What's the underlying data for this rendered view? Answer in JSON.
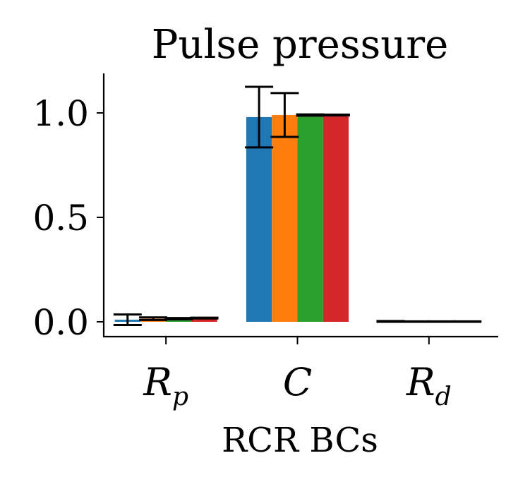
{
  "chart_data": {
    "type": "bar",
    "title": "Pulse pressure",
    "xlabel": "RCR BCs",
    "ylabel": "",
    "categories": [
      {
        "main": "R",
        "sub": "p"
      },
      {
        "main": "C",
        "sub": ""
      },
      {
        "main": "R",
        "sub": "d"
      }
    ],
    "series": [
      {
        "color": "#1f77b4",
        "values": [
          0.01,
          0.98,
          0.002
        ],
        "errors": [
          0.025,
          0.145,
          0.002
        ]
      },
      {
        "color": "#ff7f0e",
        "values": [
          0.015,
          0.99,
          0.001
        ],
        "errors": [
          0.006,
          0.105,
          0.001
        ]
      },
      {
        "color": "#2ca02c",
        "values": [
          0.015,
          0.99,
          0.001
        ],
        "errors": [
          0.003,
          0.003,
          0.001
        ]
      },
      {
        "color": "#d62728",
        "values": [
          0.018,
          0.99,
          0.001
        ],
        "errors": [
          0.002,
          0.002,
          0.001
        ]
      }
    ],
    "ylim": [
      -0.07,
      1.18
    ],
    "yticks": [
      0.0,
      0.5,
      1.0
    ],
    "ytick_labels": [
      "0.0",
      "0.5",
      "1.0"
    ],
    "grid": false,
    "legend": "none"
  }
}
